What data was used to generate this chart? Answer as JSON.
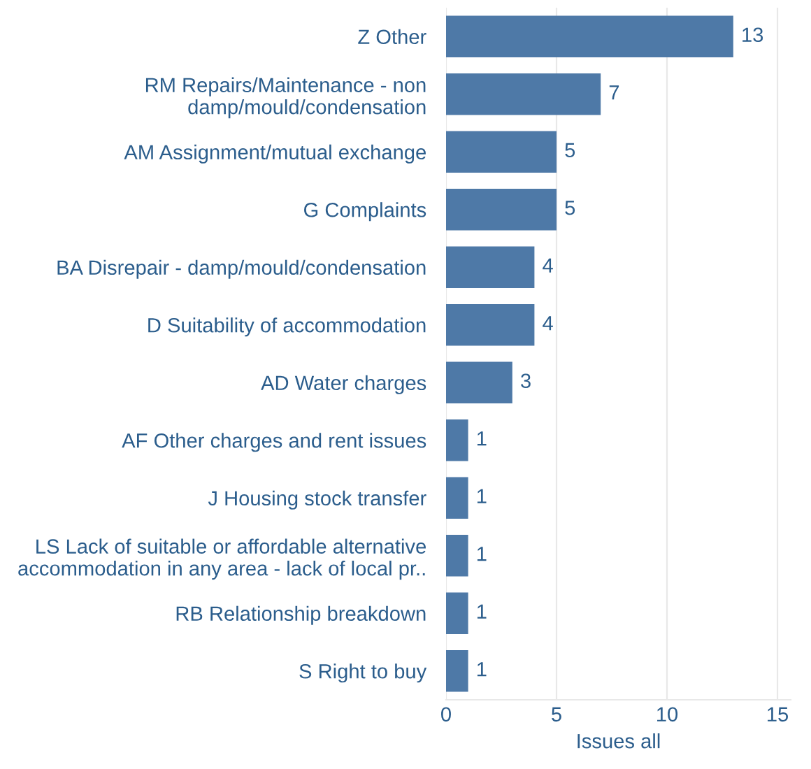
{
  "chart_data": {
    "type": "bar",
    "orientation": "horizontal",
    "xlabel": "Issues all",
    "categories": [
      "Z Other",
      "RM Repairs/Maintenance - non\ndamp/mould/condensation",
      "AM Assignment/mutual exchange",
      "G Complaints",
      "BA Disrepair - damp/mould/condensation",
      "D Suitability of accommodation",
      "AD Water charges",
      "AF Other charges and rent issues",
      "J Housing stock transfer",
      "LS Lack of suitable or affordable alternative\naccommodation in any area - lack of local pr..",
      "RB Relationship breakdown",
      "S Right to buy"
    ],
    "values": [
      13,
      7,
      5,
      5,
      4,
      4,
      3,
      1,
      1,
      1,
      1,
      1
    ],
    "color": "#4e79a7",
    "xlim": [
      0,
      15.6
    ],
    "xticks": [
      0,
      5,
      10,
      15
    ],
    "grid": "x",
    "data_labels": true
  }
}
